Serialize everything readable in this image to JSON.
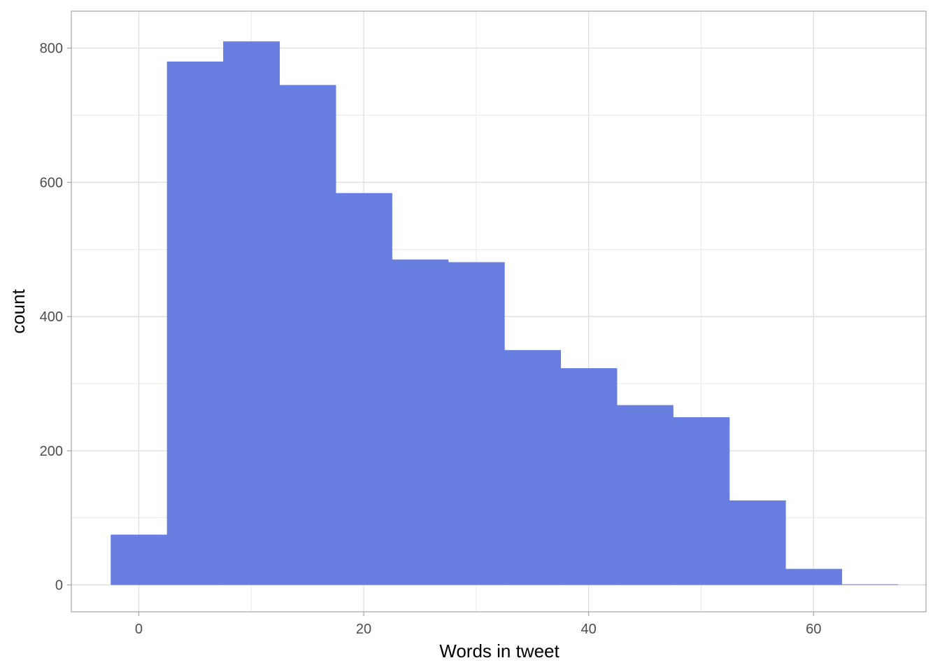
{
  "chart_data": {
    "type": "bar",
    "subtype": "histogram",
    "title": "",
    "xlabel": "Words in tweet",
    "ylabel": "count",
    "binwidth": 5,
    "bins": [
      {
        "x_center": 0,
        "count": 75
      },
      {
        "x_center": 5,
        "count": 780
      },
      {
        "x_center": 10,
        "count": 810
      },
      {
        "x_center": 15,
        "count": 745
      },
      {
        "x_center": 20,
        "count": 584
      },
      {
        "x_center": 25,
        "count": 485
      },
      {
        "x_center": 30,
        "count": 481
      },
      {
        "x_center": 35,
        "count": 350
      },
      {
        "x_center": 40,
        "count": 323
      },
      {
        "x_center": 45,
        "count": 268
      },
      {
        "x_center": 50,
        "count": 250
      },
      {
        "x_center": 55,
        "count": 126
      },
      {
        "x_center": 60,
        "count": 24
      },
      {
        "x_center": 65,
        "count": 1
      }
    ],
    "xlim": [
      -6,
      70
    ],
    "ylim": [
      -40,
      855
    ],
    "x_ticks": [
      0,
      20,
      40,
      60
    ],
    "x_tick_labels": [
      "0",
      "20",
      "40",
      "60"
    ],
    "y_ticks": [
      0,
      200,
      400,
      600,
      800
    ],
    "y_tick_labels": [
      "0",
      "200",
      "400",
      "600",
      "800"
    ],
    "fill_color": "#687ee0",
    "grid": true,
    "legend": "none"
  }
}
